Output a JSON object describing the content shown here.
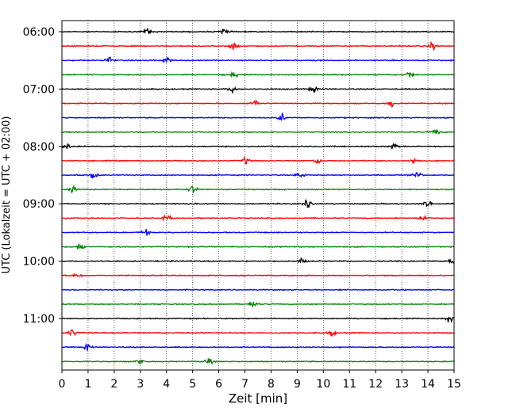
{
  "chart_data": {
    "type": "line",
    "title": "",
    "xlabel": "Zeit  [min]",
    "ylabel": "UTC (Lokalzeit = UTC + 02:00)",
    "xlim": [
      0,
      15
    ],
    "x_ticks": [
      "0",
      "1",
      "2",
      "3",
      "4",
      "5",
      "6",
      "7",
      "8",
      "9",
      "10",
      "11",
      "12",
      "13",
      "14",
      "15"
    ],
    "y_tick_labels": [
      "06:00",
      "07:00",
      "08:00",
      "09:00",
      "10:00",
      "11:00"
    ],
    "grid": "vertical dotted lines at each minute",
    "traces_per_hour": 4,
    "minutes_per_trace": 15,
    "trace_colors": [
      "#000000",
      "#ff0000",
      "#0000ff",
      "#008000"
    ],
    "series": [
      {
        "start": "06:00",
        "color": "#000000",
        "events_min": [
          3.3,
          6.2
        ]
      },
      {
        "start": "06:15",
        "color": "#ff0000",
        "events_min": [
          6.6,
          14.2
        ]
      },
      {
        "start": "06:30",
        "color": "#0000ff",
        "events_min": [
          1.8,
          4.0
        ]
      },
      {
        "start": "06:45",
        "color": "#008000",
        "events_min": [
          6.6,
          13.3
        ]
      },
      {
        "start": "07:00",
        "color": "#000000",
        "events_min": [
          6.5,
          9.6
        ]
      },
      {
        "start": "07:15",
        "color": "#ff0000",
        "events_min": [
          7.4,
          12.6
        ]
      },
      {
        "start": "07:30",
        "color": "#0000ff",
        "events_min": [
          8.4
        ]
      },
      {
        "start": "07:45",
        "color": "#008000",
        "events_min": [
          14.3
        ]
      },
      {
        "start": "08:00",
        "color": "#000000",
        "events_min": [
          0.2,
          12.7
        ]
      },
      {
        "start": "08:15",
        "color": "#ff0000",
        "events_min": [
          7.0,
          9.8,
          13.5
        ]
      },
      {
        "start": "08:30",
        "color": "#0000ff",
        "events_min": [
          1.2,
          9.1,
          13.6
        ]
      },
      {
        "start": "08:45",
        "color": "#008000",
        "events_min": [
          0.4,
          5.0
        ]
      },
      {
        "start": "09:00",
        "color": "#000000",
        "events_min": [
          9.4,
          14.0
        ]
      },
      {
        "start": "09:15",
        "color": "#ff0000",
        "events_min": [
          4.0,
          13.8
        ]
      },
      {
        "start": "09:30",
        "color": "#0000ff",
        "events_min": [
          3.2
        ]
      },
      {
        "start": "09:45",
        "color": "#008000",
        "events_min": [
          0.7
        ]
      },
      {
        "start": "10:00",
        "color": "#000000",
        "events_min": [
          9.2,
          14.9
        ]
      },
      {
        "start": "10:15",
        "color": "#ff0000",
        "events_min": [
          0.6
        ]
      },
      {
        "start": "10:30",
        "color": "#0000ff",
        "events_min": []
      },
      {
        "start": "10:45",
        "color": "#008000",
        "events_min": [
          7.3
        ]
      },
      {
        "start": "11:00",
        "color": "#000000",
        "events_min": [
          14.8
        ]
      },
      {
        "start": "11:15",
        "color": "#ff0000",
        "events_min": [
          0.4,
          10.3
        ]
      },
      {
        "start": "11:30",
        "color": "#0000ff",
        "events_min": [
          1.0
        ]
      },
      {
        "start": "11:45",
        "color": "#008000",
        "events_min": [
          3.0,
          5.6
        ]
      }
    ]
  }
}
